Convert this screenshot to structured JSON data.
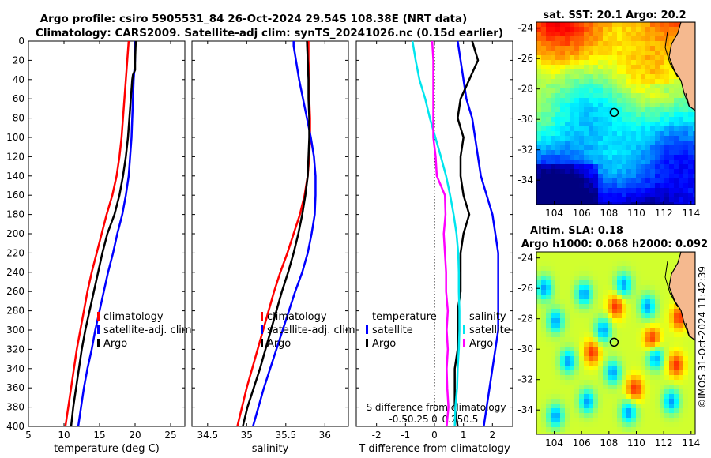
{
  "title": {
    "line1": "Argo profile: csiro 5905531_84 26-Oct-2024 29.54S 108.38E (NRT data)",
    "line2": "Climatology: CARS2009. Satellite-adj clim: synTS_20241026.nc (0.15d earlier)"
  },
  "watermark": "©IMOS 31-Oct-2024 11:42:39",
  "colors": {
    "climatology": "#ff0000",
    "satellite": "#0000ff",
    "argo": "#000000",
    "salinity_diff": "#00e5ee",
    "temperature_diff": "#ff00ff",
    "land": "#f5b98f"
  },
  "chart_data": [
    {
      "type": "line",
      "title": "",
      "xlabel": "temperature (deg C)",
      "ylabel": "",
      "xlim": [
        5,
        27
      ],
      "ylim": [
        400,
        0
      ],
      "xticks": [
        "5",
        "10",
        "15",
        "20",
        "25"
      ],
      "yticks": [
        "0",
        "20",
        "40",
        "60",
        "80",
        "100",
        "120",
        "140",
        "160",
        "180",
        "200",
        "220",
        "240",
        "260",
        "280",
        "300",
        "320",
        "340",
        "360",
        "380",
        "400"
      ],
      "legend": [
        "climatology",
        "satellite-adj. clim",
        "Argo"
      ],
      "series": [
        {
          "name": "climatology",
          "depth": [
            0,
            20,
            40,
            60,
            80,
            100,
            120,
            140,
            160,
            180,
            200,
            220,
            240,
            260,
            280,
            300,
            320,
            340,
            360,
            380,
            400
          ],
          "values": [
            19.1,
            18.9,
            18.7,
            18.5,
            18.3,
            18.1,
            17.8,
            17.4,
            16.8,
            16.0,
            15.3,
            14.6,
            13.9,
            13.3,
            12.8,
            12.3,
            11.8,
            11.4,
            11.0,
            10.6,
            10.2
          ]
        },
        {
          "name": "satellite-adj. clim",
          "depth": [
            0,
            20,
            40,
            60,
            80,
            100,
            120,
            140,
            160,
            180,
            200,
            220,
            240,
            260,
            280,
            300,
            320,
            340,
            360,
            380,
            400
          ],
          "values": [
            20.0,
            20.0,
            19.8,
            19.7,
            19.6,
            19.5,
            19.3,
            19.1,
            18.7,
            18.2,
            17.5,
            16.9,
            16.2,
            15.6,
            15.0,
            14.4,
            13.9,
            13.3,
            12.8,
            12.4,
            12.0
          ]
        },
        {
          "name": "Argo",
          "depth": [
            0,
            20,
            30,
            35,
            40,
            60,
            80,
            100,
            120,
            140,
            160,
            180,
            200,
            220,
            240,
            260,
            280,
            300,
            320,
            340,
            360,
            380,
            400
          ],
          "values": [
            20.1,
            20.0,
            20.0,
            19.7,
            19.6,
            19.4,
            19.2,
            19.0,
            18.7,
            18.3,
            17.8,
            17.1,
            16.1,
            15.4,
            14.8,
            14.2,
            13.6,
            13.0,
            12.5,
            12.1,
            11.7,
            11.3,
            11.0
          ]
        }
      ]
    },
    {
      "type": "line",
      "xlabel": "salinity",
      "xlim": [
        34.3,
        36.3
      ],
      "ylim": [
        400,
        0
      ],
      "xticks": [
        "34.5",
        "35",
        "35.5",
        "36"
      ],
      "legend": [
        "climatology",
        "satellite-adj. clim",
        "Argo"
      ],
      "series": [
        {
          "name": "climatology",
          "depth": [
            0,
            20,
            40,
            60,
            80,
            100,
            120,
            140,
            160,
            180,
            200,
            220,
            240,
            260,
            280,
            300,
            320,
            340,
            360,
            380,
            400
          ],
          "values": [
            35.79,
            35.79,
            35.8,
            35.8,
            35.81,
            35.81,
            35.8,
            35.78,
            35.74,
            35.68,
            35.6,
            35.52,
            35.43,
            35.35,
            35.28,
            35.21,
            35.14,
            35.07,
            35.0,
            34.94,
            34.88
          ]
        },
        {
          "name": "satellite-adj. clim",
          "depth": [
            0,
            5,
            20,
            40,
            60,
            80,
            100,
            120,
            140,
            160,
            180,
            200,
            220,
            240,
            260,
            280,
            300,
            320,
            340,
            360,
            380,
            400
          ],
          "values": [
            35.6,
            35.6,
            35.63,
            35.67,
            35.72,
            35.77,
            35.82,
            35.86,
            35.88,
            35.88,
            35.87,
            35.83,
            35.78,
            35.71,
            35.62,
            35.54,
            35.46,
            35.38,
            35.3,
            35.22,
            35.15,
            35.08
          ]
        },
        {
          "name": "Argo",
          "depth": [
            0,
            20,
            40,
            60,
            80,
            100,
            120,
            140,
            160,
            180,
            200,
            220,
            240,
            260,
            280,
            300,
            320,
            340,
            360,
            380,
            400
          ],
          "values": [
            35.77,
            35.78,
            35.79,
            35.79,
            35.8,
            35.8,
            35.79,
            35.78,
            35.75,
            35.71,
            35.66,
            35.6,
            35.53,
            35.45,
            35.38,
            35.31,
            35.24,
            35.17,
            35.09,
            35.01,
            34.95
          ]
        }
      ]
    },
    {
      "type": "line",
      "xlabel": "T difference from climatology",
      "xlim": [
        -2.7,
        2.7
      ],
      "ylim": [
        400,
        0
      ],
      "xticks": [
        "-2",
        "-1",
        "0",
        "1",
        "2"
      ],
      "top_axis_label": "S difference from climatology",
      "top_xticks": [
        "-0.5",
        "-0.25",
        "0",
        "0.25",
        "0.5"
      ],
      "legend_left": {
        "heading": "temperature",
        "items": [
          "satellite",
          "Argo"
        ]
      },
      "legend_right": {
        "heading": "salinity",
        "items": [
          "satellite",
          "Argo"
        ]
      },
      "series": [
        {
          "name": "temperature satellite",
          "depth": [
            0,
            20,
            40,
            60,
            80,
            100,
            120,
            140,
            160,
            180,
            200,
            220,
            240,
            260,
            280,
            300,
            320,
            340,
            360,
            380,
            400
          ],
          "values": [
            0.8,
            0.9,
            1.0,
            1.1,
            1.3,
            1.4,
            1.5,
            1.6,
            1.8,
            2.0,
            2.1,
            2.2,
            2.2,
            2.2,
            2.2,
            2.2,
            2.1,
            2.0,
            1.9,
            1.8,
            1.7
          ]
        },
        {
          "name": "temperature Argo",
          "depth": [
            0,
            20,
            40,
            60,
            80,
            100,
            120,
            140,
            160,
            180,
            200,
            220,
            240,
            260,
            280,
            300,
            320,
            340,
            360,
            380,
            400
          ],
          "values": [
            1.3,
            1.5,
            1.2,
            0.9,
            0.8,
            1.0,
            0.9,
            0.9,
            1.0,
            1.2,
            1.0,
            0.9,
            0.9,
            0.9,
            0.8,
            0.8,
            0.8,
            0.7,
            0.7,
            0.7,
            0.8
          ]
        },
        {
          "name": "salinity satellite",
          "depth": [
            0,
            20,
            40,
            60,
            80,
            100,
            120,
            140,
            160,
            180,
            200,
            220,
            240,
            260,
            280,
            300,
            320,
            340,
            360,
            380,
            400
          ],
          "values": [
            -0.76,
            -0.65,
            -0.52,
            -0.32,
            -0.16,
            0.03,
            0.22,
            0.4,
            0.54,
            0.66,
            0.76,
            0.82,
            0.84,
            0.84,
            0.86,
            0.86,
            0.84,
            0.8,
            0.78,
            0.72,
            0.7
          ]
        },
        {
          "name": "salinity Argo",
          "depth": [
            0,
            20,
            40,
            60,
            80,
            100,
            120,
            140,
            160,
            180,
            200,
            220,
            240,
            260,
            280,
            300,
            320,
            340,
            360,
            380,
            400
          ],
          "values": [
            -0.08,
            -0.04,
            -0.04,
            -0.04,
            -0.04,
            -0.04,
            0.04,
            0.08,
            0.36,
            0.38,
            0.32,
            0.36,
            0.4,
            0.4,
            0.46,
            0.42,
            0.46,
            0.42,
            0.44,
            0.48,
            0.42
          ]
        }
      ]
    },
    {
      "type": "heatmap",
      "title": "sat. SST: 20.1  Argo: 20.2",
      "xlim": [
        102.7,
        114.3
      ],
      "ylim": [
        -35.6,
        -23.6
      ],
      "xticks": [
        "104",
        "106",
        "108",
        "110",
        "112",
        "114"
      ],
      "yticks": [
        "-24",
        "-26",
        "-28",
        "-30",
        "-32",
        "-34"
      ],
      "argo_position": {
        "lon": 108.38,
        "lat": -29.54
      },
      "colormap": "jet (cold blue in south, warm orange/red in north)"
    },
    {
      "type": "heatmap",
      "title": "Altim. SLA: 0.18",
      "subtitle": "Argo h1000: 0.068  h2000: 0.092",
      "xlim": [
        102.7,
        114.3
      ],
      "ylim": [
        -35.6,
        -23.6
      ],
      "xticks": [
        "104",
        "106",
        "108",
        "110",
        "112",
        "114"
      ],
      "yticks": [
        "-24",
        "-26",
        "-28",
        "-30",
        "-32",
        "-34"
      ],
      "argo_position": {
        "lon": 108.38,
        "lat": -29.54
      },
      "colormap": "jet (blue eddies on green background with warm anomalies)"
    }
  ]
}
